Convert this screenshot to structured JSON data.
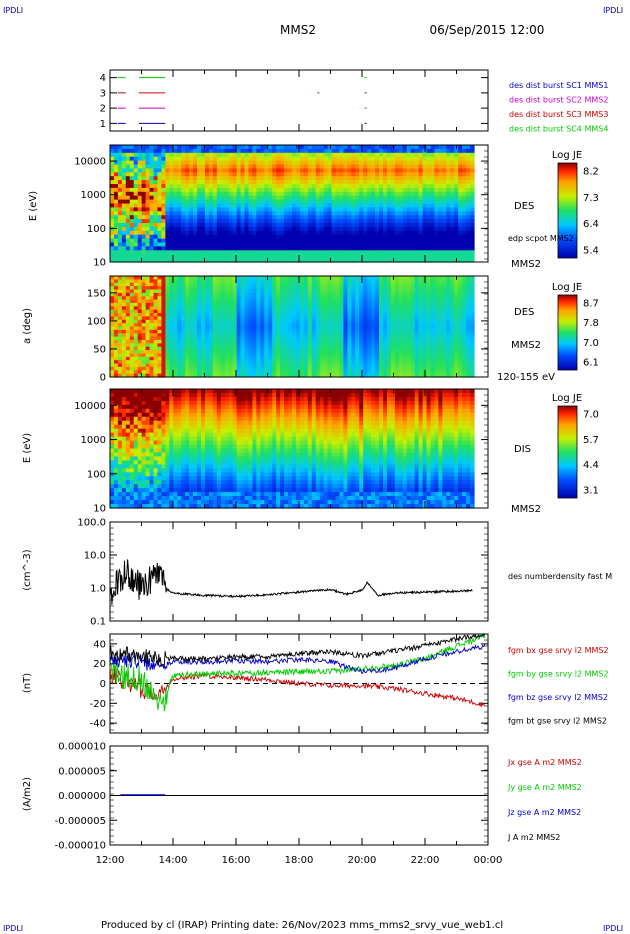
{
  "corner_left_top": "IPDLI",
  "corner_right_top": "IPDLI",
  "corner_left_bottom": "IPDLI",
  "corner_right_bottom": "IPDLI",
  "title": "MMS2",
  "datetime": "06/Sep/2015 12:00",
  "footer": "Produced by cl (IRAP)   Printing date: 26/Nov/2023   mms_mms2_srvy_vue_web1.cl",
  "chart_data": [
    {
      "type": "line",
      "panel": "burst",
      "xlim": [
        "12:00",
        "00:00"
      ],
      "ylim": [
        0.5,
        4.5
      ],
      "y_ticks": [
        "1",
        "2",
        "3",
        "4"
      ],
      "legend": [
        {
          "label": "des dist burst SC1 MMS1",
          "color": "#0000cc"
        },
        {
          "label": "des dist burst SC2 MMS2",
          "color": "#cc00cc"
        },
        {
          "label": "des dist burst SC3 MMS3",
          "color": "#cc0000"
        },
        {
          "label": "des dist burst SC4 MMS4",
          "color": "#00cc00"
        }
      ],
      "series": [
        {
          "level": 4,
          "color": "#00cc00",
          "intervals": [
            [
              "12:15",
              "12:30"
            ],
            [
              "12:55",
              "13:45"
            ],
            [
              "20:05",
              "20:08"
            ]
          ]
        },
        {
          "level": 3,
          "color": "#cc0000",
          "intervals": [
            [
              "12:15",
              "12:30"
            ],
            [
              "12:55",
              "13:45"
            ],
            [
              "18:35",
              "18:37"
            ],
            [
              "20:05",
              "20:08"
            ]
          ]
        },
        {
          "level": 2,
          "color": "#cc00cc",
          "intervals": [
            [
              "12:15",
              "12:30"
            ],
            [
              "12:55",
              "13:45"
            ],
            [
              "20:05",
              "20:08"
            ]
          ]
        },
        {
          "level": 1,
          "color": "#0000cc",
          "intervals": [
            [
              "12:15",
              "12:30"
            ],
            [
              "12:55",
              "13:45"
            ],
            [
              "20:05",
              "20:08"
            ]
          ]
        }
      ]
    },
    {
      "type": "heatmap",
      "panel": "des-energy",
      "ylabel": "E (eV)",
      "y_scale": "log",
      "ylim": [
        10,
        30000
      ],
      "y_ticks": [
        "10",
        "100",
        "1000",
        "10000"
      ],
      "right_labels": [
        "DES",
        "edp scpot MMS2",
        "MMS2"
      ],
      "colorbar": {
        "title": "Log JE",
        "ticks": [
          "8.2",
          "7.3",
          "6.4",
          "5.4"
        ]
      }
    },
    {
      "type": "heatmap",
      "panel": "des-pitch",
      "ylabel": "a (deg)",
      "ylim": [
        0,
        180
      ],
      "y_ticks": [
        "0",
        "50",
        "100",
        "150"
      ],
      "right_labels": [
        "DES",
        "MMS2",
        "120-155 eV"
      ],
      "colorbar": {
        "title": "Log JE",
        "ticks": [
          "8.7",
          "7.8",
          "7.0",
          "6.1"
        ]
      }
    },
    {
      "type": "heatmap",
      "panel": "dis-energy",
      "ylabel": "E (eV)",
      "y_scale": "log",
      "ylim": [
        10,
        30000
      ],
      "y_ticks": [
        "10",
        "100",
        "1000",
        "10000"
      ],
      "right_labels": [
        "DIS",
        "MMS2"
      ],
      "colorbar": {
        "title": "Log JE",
        "ticks": [
          "7.0",
          "5.7",
          "4.4",
          "3.1"
        ]
      }
    },
    {
      "type": "line",
      "panel": "density",
      "ylabel": "(cm^-3)",
      "y_scale": "log",
      "ylim": [
        0.1,
        100
      ],
      "y_ticks": [
        "0.1",
        "1.0",
        "10.0",
        "100.0"
      ],
      "legend": [
        {
          "label": "des numberdensity fast M",
          "color": "#000000"
        }
      ],
      "series": [
        {
          "name": "des numberdensity fast M",
          "color": "#000000",
          "x": [
            "12:00",
            "12:30",
            "13:00",
            "13:30",
            "13:50",
            "14:00",
            "15:00",
            "16:00",
            "17:00",
            "18:00",
            "19:00",
            "19:30",
            "20:00",
            "20:10",
            "20:30",
            "21:00",
            "22:00",
            "23:00",
            "23:30"
          ],
          "y": [
            0.6,
            3.0,
            1.0,
            2.5,
            0.9,
            0.7,
            0.6,
            0.55,
            0.62,
            0.75,
            0.9,
            0.65,
            0.85,
            1.5,
            0.6,
            0.7,
            0.75,
            0.8,
            0.85
          ]
        }
      ]
    },
    {
      "type": "line",
      "panel": "magnetic-field",
      "ylabel": "(nT)",
      "ylim": [
        -50,
        50
      ],
      "y_ticks": [
        "-40",
        "-20",
        "0",
        "20",
        "40"
      ],
      "legend": [
        {
          "label": "fgm bx gse srvy l2 MMS2",
          "color": "#cc0000"
        },
        {
          "label": "fgm by gse srvy l2 MMS2",
          "color": "#00cc00"
        },
        {
          "label": "fgm bz gse srvy l2 MMS2",
          "color": "#0000cc"
        },
        {
          "label": "fgm bt gse srvy l2 MMS2",
          "color": "#000000"
        }
      ],
      "series": [
        {
          "name": "fgm bx gse srvy l2 MMS2",
          "color": "#cc0000",
          "x": [
            "12:00",
            "13:00",
            "13:40",
            "14:00",
            "15:00",
            "16:00",
            "17:00",
            "18:00",
            "19:00",
            "20:00",
            "21:00",
            "22:00",
            "23:00",
            "23:55"
          ],
          "y": [
            10,
            -5,
            -10,
            5,
            8,
            6,
            4,
            0,
            -2,
            -2,
            -5,
            -10,
            -15,
            -22
          ]
        },
        {
          "name": "fgm by gse srvy l2 MMS2",
          "color": "#00cc00",
          "x": [
            "12:00",
            "13:00",
            "13:40",
            "14:00",
            "15:00",
            "16:00",
            "17:00",
            "18:00",
            "19:00",
            "20:00",
            "21:00",
            "22:00",
            "23:00",
            "23:55"
          ],
          "y": [
            10,
            5,
            -20,
            8,
            10,
            10,
            11,
            12,
            12,
            15,
            18,
            25,
            38,
            48
          ]
        },
        {
          "name": "fgm bz gse srvy l2 MMS2",
          "color": "#0000cc",
          "x": [
            "12:00",
            "13:00",
            "13:40",
            "14:00",
            "15:00",
            "16:00",
            "17:00",
            "18:00",
            "19:00",
            "20:00",
            "21:00",
            "22:00",
            "23:00",
            "23:55"
          ],
          "y": [
            25,
            22,
            18,
            22,
            22,
            23,
            22,
            24,
            22,
            12,
            15,
            25,
            32,
            38
          ]
        },
        {
          "name": "fgm bt gse srvy l2 MMS2",
          "color": "#000000",
          "x": [
            "12:00",
            "13:00",
            "13:40",
            "14:00",
            "15:00",
            "16:00",
            "17:00",
            "18:00",
            "19:00",
            "20:00",
            "21:00",
            "22:00",
            "23:00",
            "23:55"
          ],
          "y": [
            30,
            28,
            25,
            25,
            25,
            27,
            27,
            30,
            32,
            28,
            33,
            38,
            45,
            50
          ]
        }
      ]
    },
    {
      "type": "line",
      "panel": "current-density",
      "ylabel": "(A/m2)",
      "ylim": [
        -1e-05,
        1e-05
      ],
      "y_ticks": [
        "-0.000010",
        "-0.000005",
        "0.000000",
        "0.000005",
        "0.000010"
      ],
      "legend": [
        {
          "label": "Jx gse A m2 MMS2",
          "color": "#cc0000"
        },
        {
          "label": "Jy gse A m2 MMS2",
          "color": "#00cc00"
        },
        {
          "label": "Jz gse A m2 MMS2",
          "color": "#0000cc"
        },
        {
          "label": "J A m2 MMS2",
          "color": "#000000"
        }
      ],
      "series": [
        {
          "name": "J A m2 MMS2",
          "color": "#000000",
          "x": [
            "12:00",
            "23:55"
          ],
          "y": [
            0,
            0
          ]
        }
      ]
    }
  ],
  "x_axis": {
    "ticks": [
      "12:00",
      "14:00",
      "16:00",
      "18:00",
      "20:00",
      "22:00",
      "00:00"
    ]
  }
}
